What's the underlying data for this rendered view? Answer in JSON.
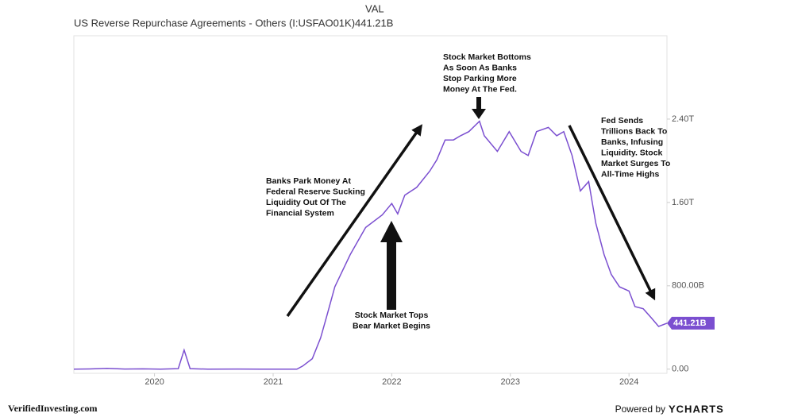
{
  "chart_data": {
    "type": "line",
    "title": "US Reverse Repurchase Agreements - Others (I:USFAO01K)",
    "value_header": "VAL",
    "last_value": {
      "value": 441.21,
      "label": "441.21B"
    },
    "xlim": [
      2019.32,
      2024.32
    ],
    "xticks": [
      2020,
      2021,
      2022,
      2023,
      2024
    ],
    "ylim": [
      -40,
      3200
    ],
    "yticks": [
      {
        "value": 0,
        "label": "0.00"
      },
      {
        "value": 800,
        "label": "800.00B"
      },
      {
        "value": 1600,
        "label": "1.60T"
      },
      {
        "value": 2400,
        "label": "2.40T"
      }
    ],
    "x": [
      2019.32,
      2019.45,
      2019.6,
      2019.75,
      2019.9,
      2020.05,
      2020.2,
      2020.25,
      2020.3,
      2020.45,
      2020.7,
      2020.9,
      2021.1,
      2021.2,
      2021.25,
      2021.33,
      2021.4,
      2021.45,
      2021.52,
      2021.65,
      2021.78,
      2021.92,
      2022.0,
      2022.05,
      2022.11,
      2022.21,
      2022.32,
      2022.38,
      2022.45,
      2022.52,
      2022.58,
      2022.65,
      2022.74,
      2022.78,
      2022.89,
      2022.99,
      2023.09,
      2023.15,
      2023.22,
      2023.32,
      2023.39,
      2023.45,
      2023.52,
      2023.59,
      2023.66,
      2023.72,
      2023.79,
      2023.85,
      2023.92,
      2024.0,
      2024.05,
      2024.12,
      2024.19,
      2024.25,
      2024.32
    ],
    "series": [
      {
        "name": "US Reverse Repurchase Agreements - Others",
        "color": "#7b4fd0",
        "values": [
          0,
          2,
          8,
          1,
          3,
          0,
          5,
          183,
          5,
          0,
          1,
          0,
          0,
          0,
          30,
          100,
          300,
          500,
          790,
          1100,
          1360,
          1480,
          1590,
          1490,
          1670,
          1745,
          1900,
          2010,
          2200,
          2200,
          2240,
          2280,
          2380,
          2240,
          2090,
          2280,
          2090,
          2050,
          2280,
          2320,
          2240,
          2280,
          2050,
          1710,
          1800,
          1400,
          1100,
          910,
          790,
          750,
          600,
          580,
          490,
          410,
          441.21
        ]
      }
    ],
    "annotations": [
      [
        "Stock Market Bottoms",
        "As Soon As Banks",
        "Stop Parking More",
        "Money At The Fed."
      ],
      [
        "Banks Park Money At",
        "Federal Reserve Sucking",
        "Liquidity Out Of The",
        "Financial System"
      ],
      [
        "Stock Market Tops",
        "Bear Market Begins"
      ],
      [
        "Fed Sends",
        "Trillions Back To",
        "Banks, Infusing",
        "Liquidity. Stock",
        "Market Surges To",
        "All-Time Highs"
      ]
    ],
    "footer_left": "VerifiedInvesting.com",
    "footer_powered": "Powered by",
    "footer_brand": "YCHARTS"
  }
}
